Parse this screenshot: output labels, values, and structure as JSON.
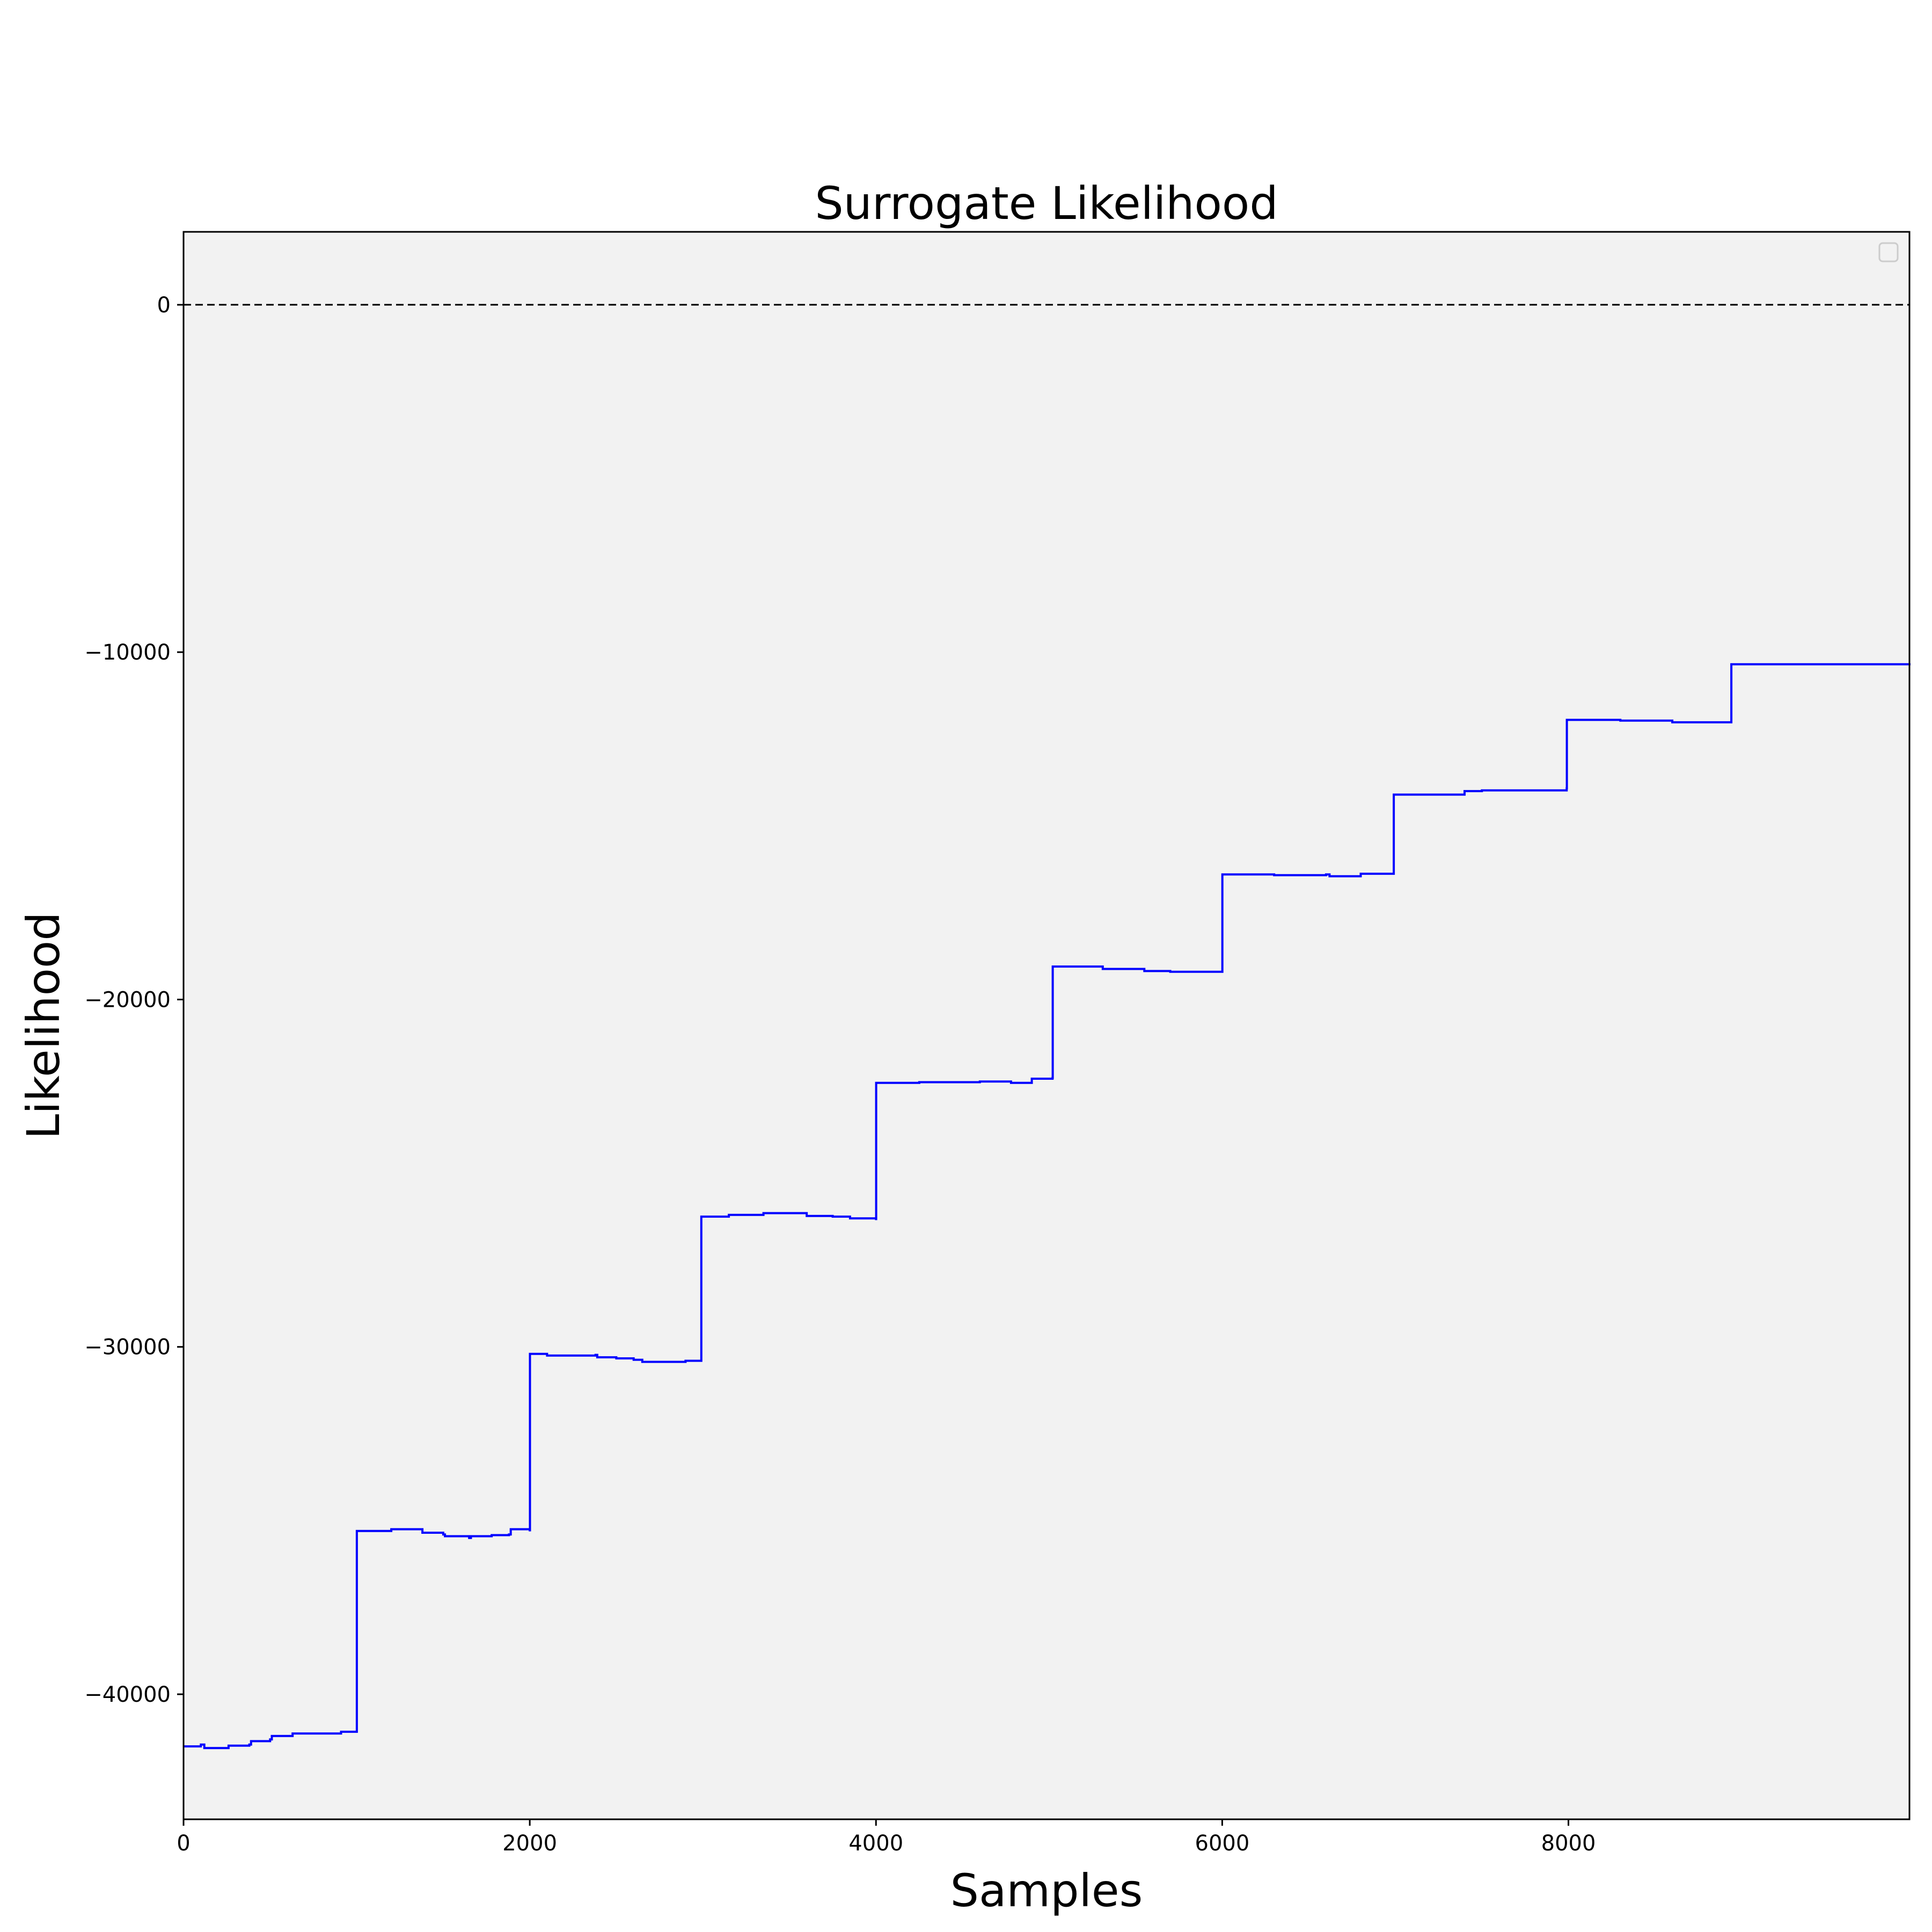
{
  "chart_data": {
    "type": "line",
    "title": "Surrogate  Likelihood",
    "xlabel": "Samples",
    "ylabel": "Likelihood",
    "xlim": [
      0,
      9970
    ],
    "ylim": [
      -43600,
      2100
    ],
    "xticks": [
      0,
      2000,
      4000,
      6000,
      8000
    ],
    "xtick_labels": [
      "0",
      "2000",
      "4000",
      "6000",
      "8000"
    ],
    "yticks": [
      0,
      -10000,
      -20000,
      -30000,
      -40000
    ],
    "ytick_labels": [
      "0",
      "−10000",
      "−20000",
      "−30000",
      "−40000"
    ],
    "grid": false,
    "legend": "top-right (empty)",
    "reference_line": {
      "y": 0,
      "style": "dashed",
      "color": "#000000"
    },
    "series": [
      {
        "color": "#0000ff",
        "step": true,
        "points": [
          [
            0,
            -41500
          ],
          [
            100,
            -41450
          ],
          [
            120,
            -41550
          ],
          [
            250,
            -41550
          ],
          [
            260,
            -41480
          ],
          [
            380,
            -41450
          ],
          [
            390,
            -41350
          ],
          [
            500,
            -41300
          ],
          [
            510,
            -41200
          ],
          [
            620,
            -41200
          ],
          [
            630,
            -41130
          ],
          [
            900,
            -41130
          ],
          [
            910,
            -41080
          ],
          [
            1000,
            -41080
          ],
          [
            1001,
            -35300
          ],
          [
            1200,
            -35250
          ],
          [
            1370,
            -35250
          ],
          [
            1380,
            -35350
          ],
          [
            1500,
            -35400
          ],
          [
            1510,
            -35450
          ],
          [
            1650,
            -35500
          ],
          [
            1660,
            -35450
          ],
          [
            1780,
            -35420
          ],
          [
            1880,
            -35400
          ],
          [
            1890,
            -35250
          ],
          [
            2000,
            -35280
          ],
          [
            2001,
            -30200
          ],
          [
            2100,
            -30250
          ],
          [
            2380,
            -30230
          ],
          [
            2390,
            -30300
          ],
          [
            2500,
            -30330
          ],
          [
            2600,
            -30370
          ],
          [
            2650,
            -30430
          ],
          [
            2900,
            -30400
          ],
          [
            2990,
            -30400
          ],
          [
            2991,
            -26250
          ],
          [
            3150,
            -26200
          ],
          [
            3350,
            -26150
          ],
          [
            3600,
            -26230
          ],
          [
            3750,
            -26250
          ],
          [
            3850,
            -26300
          ],
          [
            4000,
            -26320
          ],
          [
            4001,
            -22400
          ],
          [
            4250,
            -22380
          ],
          [
            4600,
            -22360
          ],
          [
            4780,
            -22400
          ],
          [
            4890,
            -22400
          ],
          [
            4900,
            -22280
          ],
          [
            5020,
            -22250
          ],
          [
            5021,
            -19050
          ],
          [
            5200,
            -19050
          ],
          [
            5300,
            -19050
          ],
          [
            5310,
            -19120
          ],
          [
            5550,
            -19180
          ],
          [
            5700,
            -19200
          ],
          [
            6000,
            -19200
          ],
          [
            6001,
            -16400
          ],
          [
            6300,
            -16420
          ],
          [
            6600,
            -16400
          ],
          [
            6620,
            -16450
          ],
          [
            6800,
            -16380
          ],
          [
            6990,
            -16380
          ],
          [
            6991,
            -14100
          ],
          [
            7300,
            -14100
          ],
          [
            7400,
            -14000
          ],
          [
            7500,
            -13980
          ],
          [
            7990,
            -13920
          ],
          [
            7991,
            -11950
          ],
          [
            8300,
            -11970
          ],
          [
            8600,
            -12020
          ],
          [
            8940,
            -12020
          ],
          [
            8941,
            -10350
          ],
          [
            9300,
            -10350
          ],
          [
            9970,
            -10320
          ]
        ]
      }
    ]
  }
}
